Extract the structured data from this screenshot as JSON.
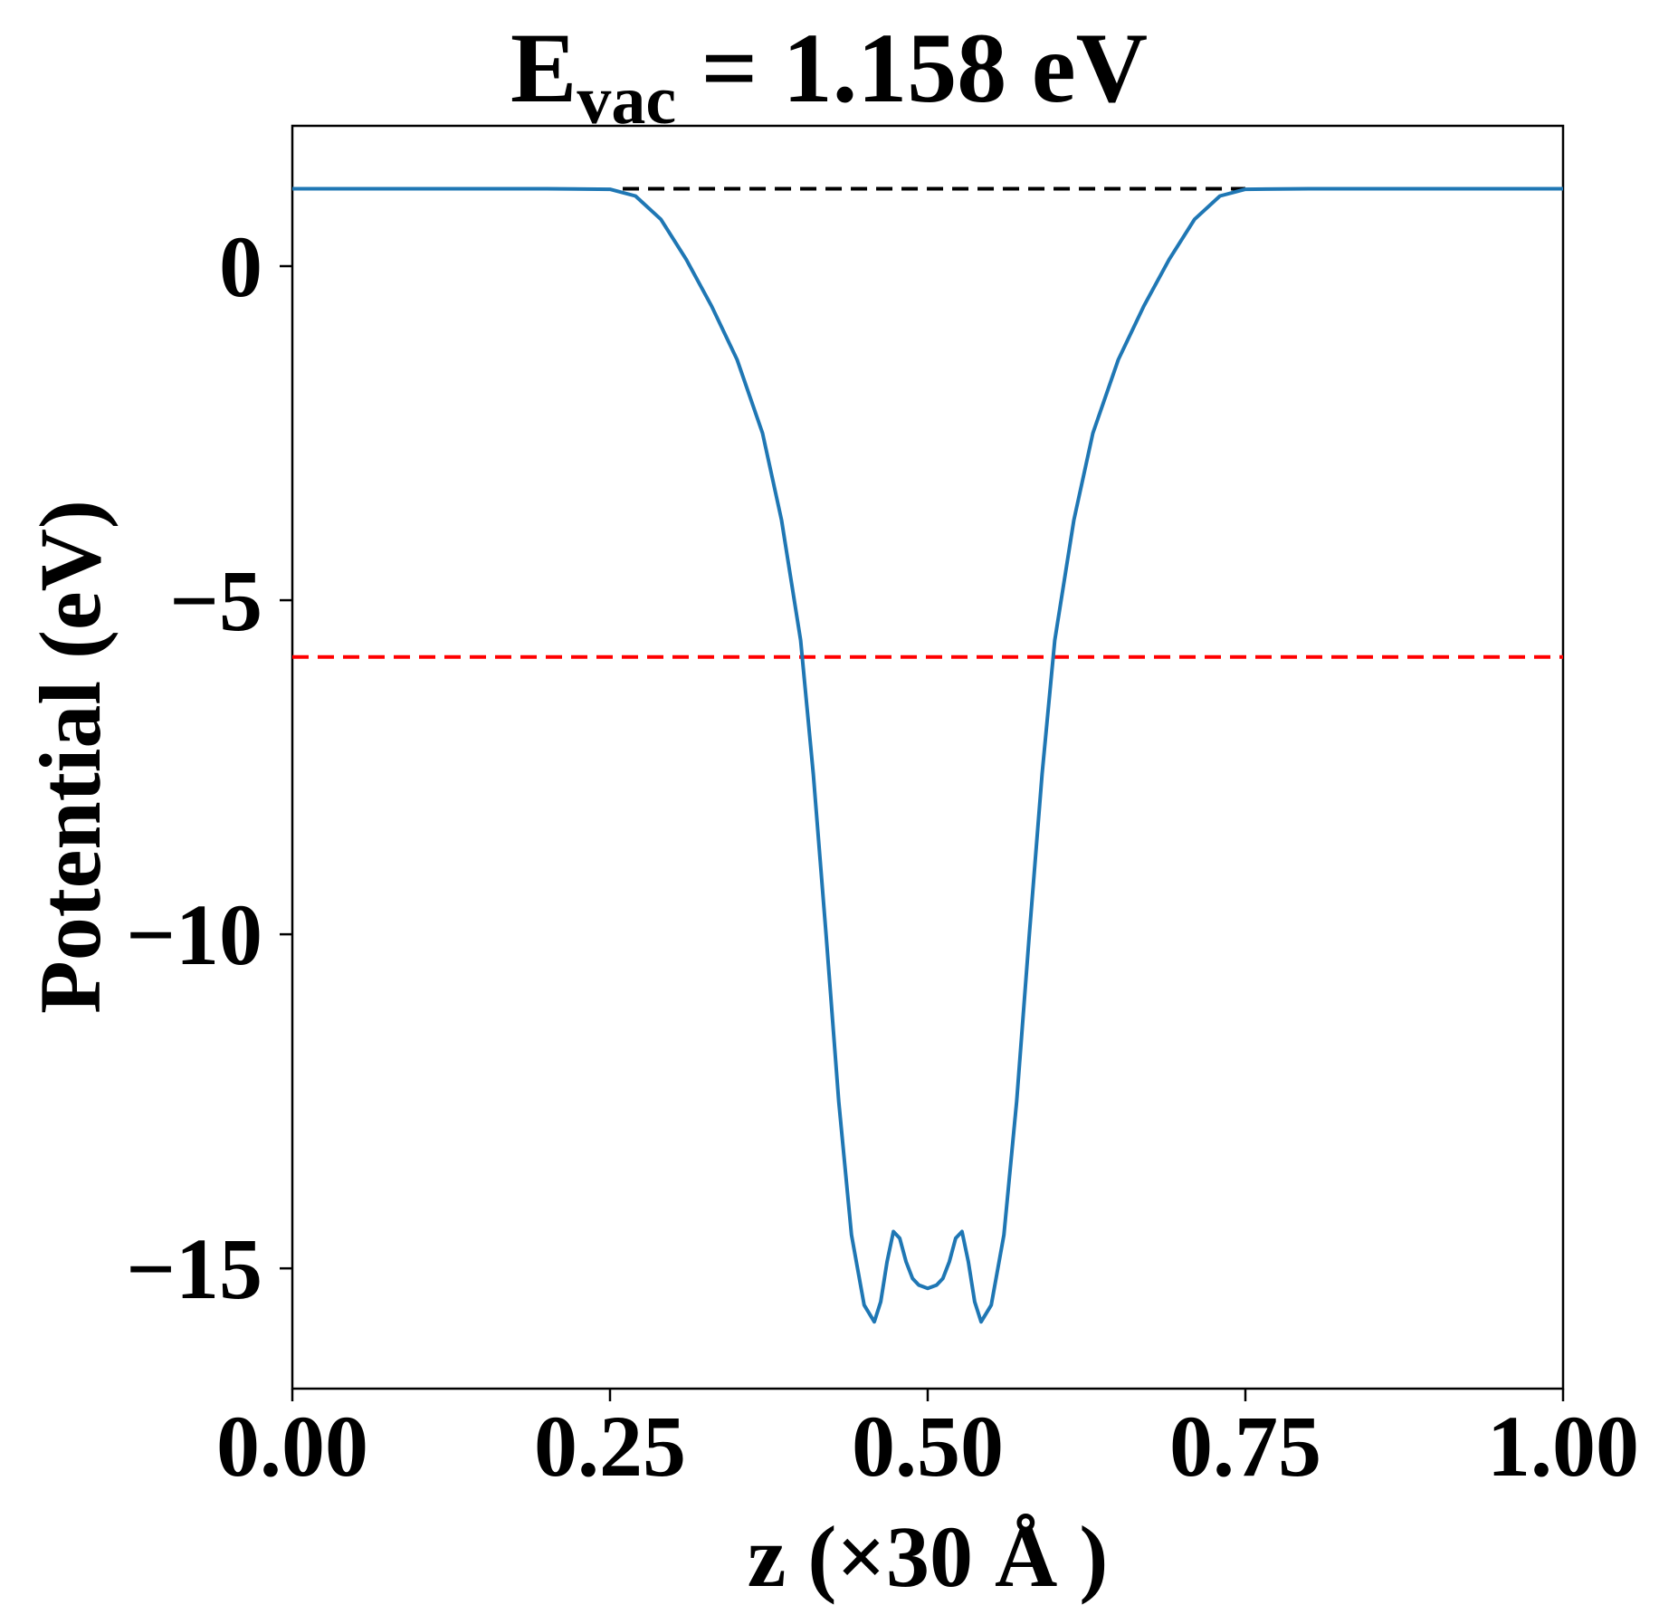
{
  "title": {
    "main": "E",
    "subscript": "vac",
    "rest": " = 1.158 eV"
  },
  "chart_data": {
    "type": "line",
    "xlabel": "z (×30 Å )",
    "ylabel": "Potential (eV)",
    "xlim": [
      0.0,
      1.0
    ],
    "ylim": [
      -16.8,
      2.1
    ],
    "x_ticks": [
      0.0,
      0.25,
      0.5,
      0.75,
      1.0
    ],
    "x_tick_labels": [
      "0.00",
      "0.25",
      "0.50",
      "0.75",
      "1.00"
    ],
    "y_ticks": [
      0,
      -5,
      -10,
      -15
    ],
    "y_tick_labels": [
      "0",
      "−5",
      "−10",
      "−15"
    ],
    "grid": false,
    "legend": "none",
    "series": [
      {
        "color": "#1f77b4",
        "style": "solid",
        "x": [
          0.0,
          0.1,
          0.2,
          0.25,
          0.27,
          0.29,
          0.31,
          0.33,
          0.35,
          0.37,
          0.385,
          0.4,
          0.41,
          0.42,
          0.43,
          0.44,
          0.45,
          0.458,
          0.463,
          0.468,
          0.473,
          0.478,
          0.483,
          0.488,
          0.493,
          0.5,
          0.507,
          0.512,
          0.517,
          0.522,
          0.527,
          0.532,
          0.537,
          0.542,
          0.55,
          0.56,
          0.57,
          0.58,
          0.59,
          0.6,
          0.615,
          0.63,
          0.65,
          0.67,
          0.69,
          0.71,
          0.73,
          0.75,
          0.8,
          0.9,
          1.0
        ],
        "y": [
          1.158,
          1.158,
          1.158,
          1.15,
          1.05,
          0.7,
          0.1,
          -0.6,
          -1.4,
          -2.5,
          -3.8,
          -5.6,
          -7.6,
          -10.0,
          -12.5,
          -14.5,
          -15.55,
          -15.8,
          -15.5,
          -14.9,
          -14.45,
          -14.55,
          -14.9,
          -15.15,
          -15.25,
          -15.3,
          -15.25,
          -15.15,
          -14.9,
          -14.55,
          -14.45,
          -14.9,
          -15.5,
          -15.8,
          -15.55,
          -14.5,
          -12.5,
          -10.0,
          -7.6,
          -5.6,
          -3.8,
          -2.5,
          -1.4,
          -0.6,
          0.1,
          0.7,
          1.05,
          1.15,
          1.158,
          1.158,
          1.158
        ]
      }
    ],
    "reference_lines": [
      {
        "y": 1.158,
        "x_range": [
          0.26,
          0.75
        ],
        "color": "#000000",
        "style": "dashed"
      },
      {
        "y": -5.85,
        "x_range": [
          0.0,
          1.0
        ],
        "color": "#ff0000",
        "style": "dashed"
      }
    ]
  }
}
